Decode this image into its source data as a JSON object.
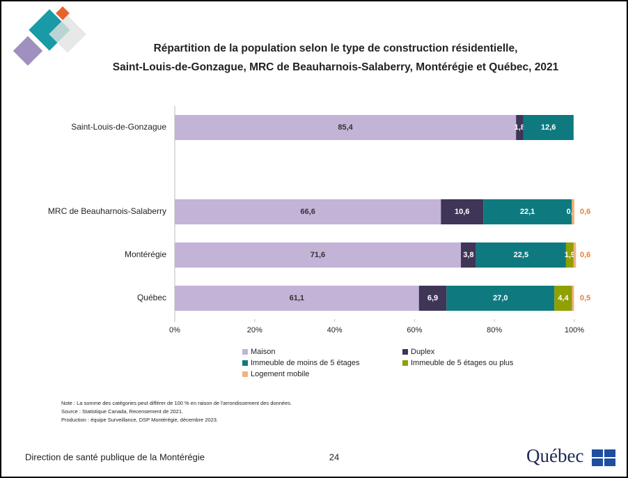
{
  "chart_data": {
    "type": "stacked-bar-horizontal",
    "title": [
      "Répartition de la population selon le type de construction résidentielle,",
      "Saint-Louis-de-Gonzague, MRC de Beauharnois-Salaberry, Montérégie et Québec, 2021"
    ],
    "categories": [
      "Saint-Louis-de-Gonzague",
      "MRC de Beauharnois-Salaberry",
      "Montérégie",
      "Québec"
    ],
    "series": [
      {
        "name": "Maison",
        "color": "#c3b3d6",
        "values": [
          85.4,
          66.6,
          71.6,
          61.1
        ],
        "value_labels": [
          "85,4",
          "66,6",
          "71,6",
          "61,1"
        ]
      },
      {
        "name": "Duplex",
        "color": "#3f3557",
        "values": [
          1.8,
          10.6,
          3.8,
          6.9
        ],
        "value_labels": [
          "1,8",
          "10,6",
          "3,8",
          "6,9"
        ]
      },
      {
        "name": "Immeuble de moins de 5 étages",
        "color": "#0e7a80",
        "values": [
          12.6,
          22.1,
          22.5,
          27.0
        ],
        "value_labels": [
          "12,6",
          "22,1",
          "22,5",
          "27,0"
        ]
      },
      {
        "name": "Immeuble de 5 étages ou plus",
        "color": "#8fa000",
        "values": [
          null,
          0.1,
          1.9,
          4.4
        ],
        "value_labels": [
          null,
          "0,1",
          "1,9",
          "4,4"
        ]
      },
      {
        "name": "Logement mobile",
        "color": "#f4b183",
        "values": [
          null,
          0.6,
          0.6,
          0.5
        ],
        "value_labels": [
          null,
          "0,6",
          "0,6",
          "0,5"
        ]
      }
    ],
    "xlim": [
      0,
      100
    ],
    "xticks": [
      {
        "value": 0,
        "label": "0%"
      },
      {
        "value": 20,
        "label": "20%"
      },
      {
        "value": 40,
        "label": "40%"
      },
      {
        "value": 60,
        "label": "60%"
      },
      {
        "value": 80,
        "label": "80%"
      },
      {
        "value": 100,
        "label": "100%"
      }
    ]
  },
  "notes": [
    "Note : La somme des catégories peut différer de 100 % en raison de l'arrondissement des données.",
    "Source : Statistique Canada, Recensement de 2021.",
    "Production : équipe Surveillance, DSP Montérégie, décembre 2023."
  ],
  "footer": {
    "left": "Direction de santé publique de la Montérégie",
    "page": "24",
    "logo": "Québec"
  }
}
